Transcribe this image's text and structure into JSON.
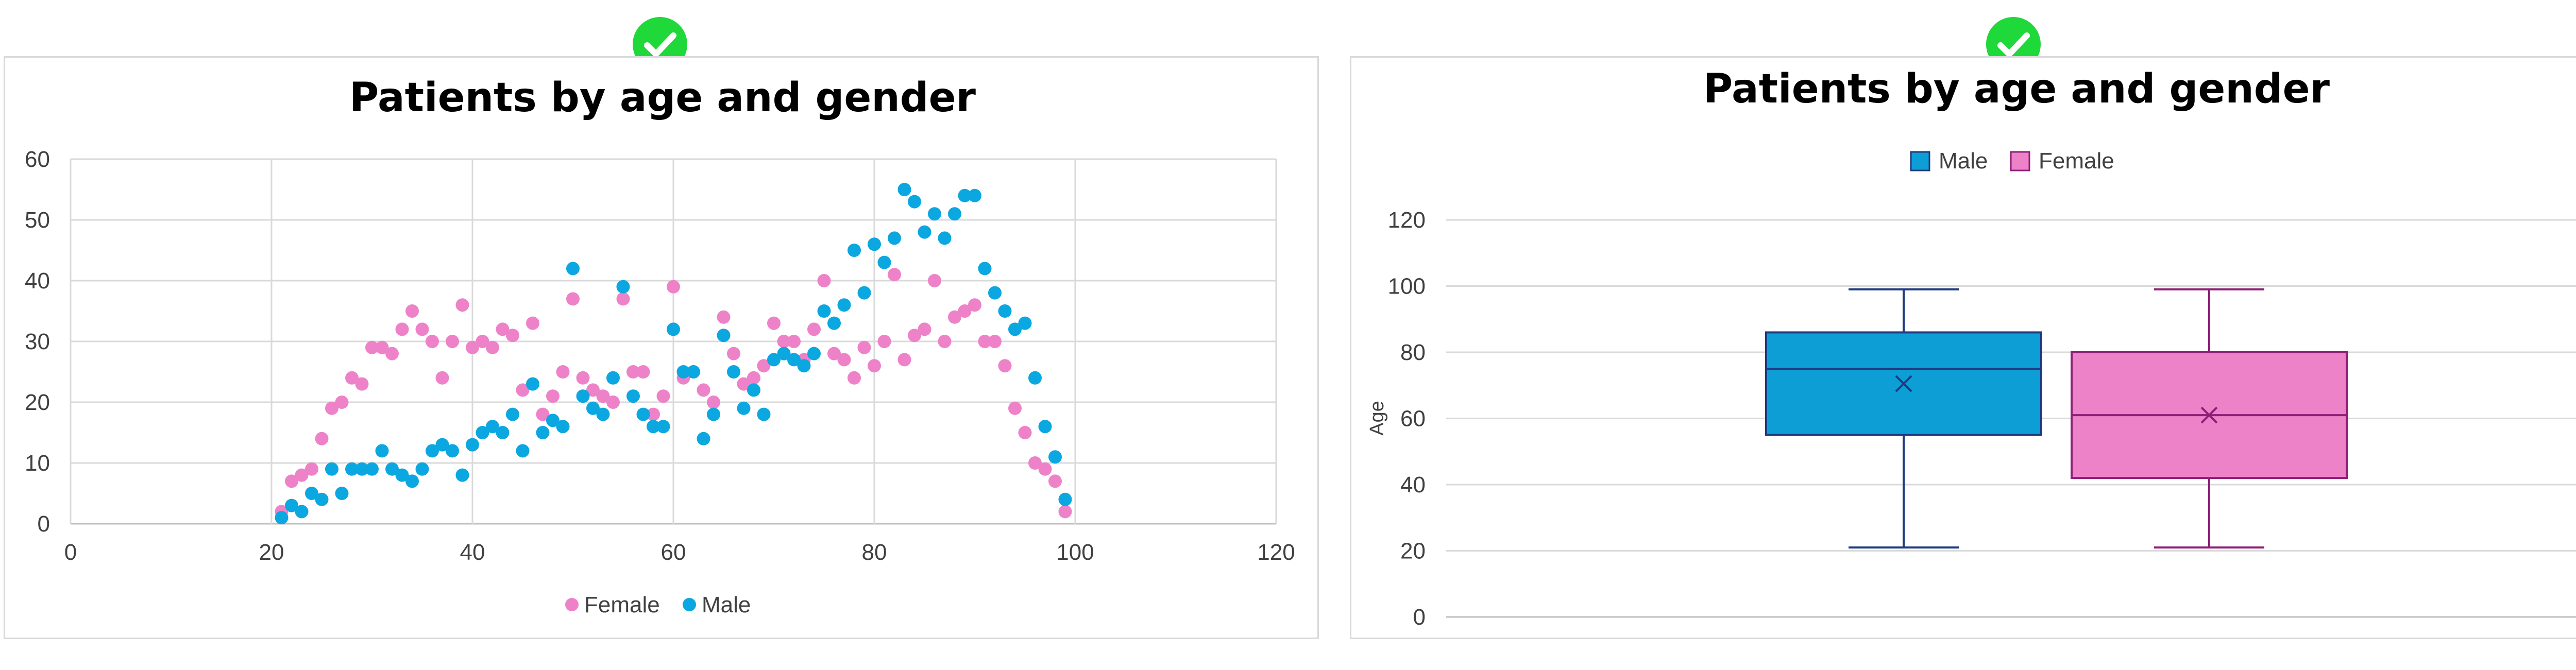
{
  "colors": {
    "title": "#9c0f74",
    "female": "#ee82c9",
    "male": "#0ba7e0",
    "male_box": "#0e9ed6",
    "male_box_edge": "#1f3a80",
    "female_box_edge": "#8e1f77",
    "grid": "#d9d9d9",
    "check": "#1fd83a"
  },
  "icons": {
    "left_badge": "check-circle-icon",
    "right_badge": "check-circle-icon"
  },
  "chart_data": [
    {
      "type": "scatter",
      "title": "Patients by age and gender",
      "xlabel": "",
      "ylabel": "",
      "xlim": [
        0,
        120
      ],
      "ylim": [
        0,
        60
      ],
      "xticks": [
        "0",
        "20",
        "40",
        "60",
        "80",
        "100",
        "120"
      ],
      "yticks": [
        "0",
        "10",
        "20",
        "30",
        "40",
        "50",
        "60"
      ],
      "grid": true,
      "legend_position": "bottom",
      "series": [
        {
          "name": "Female",
          "color": "#ee82c9",
          "points": [
            [
              21,
              2
            ],
            [
              22,
              7
            ],
            [
              23,
              8
            ],
            [
              24,
              9
            ],
            [
              25,
              14
            ],
            [
              26,
              19
            ],
            [
              27,
              20
            ],
            [
              28,
              24
            ],
            [
              29,
              23
            ],
            [
              30,
              29
            ],
            [
              31,
              29
            ],
            [
              32,
              28
            ],
            [
              33,
              32
            ],
            [
              34,
              35
            ],
            [
              35,
              32
            ],
            [
              36,
              30
            ],
            [
              37,
              24
            ],
            [
              38,
              30
            ],
            [
              39,
              36
            ],
            [
              40,
              29
            ],
            [
              41,
              30
            ],
            [
              42,
              29
            ],
            [
              43,
              32
            ],
            [
              44,
              31
            ],
            [
              45,
              22
            ],
            [
              46,
              33
            ],
            [
              47,
              18
            ],
            [
              48,
              21
            ],
            [
              49,
              25
            ],
            [
              50,
              37
            ],
            [
              51,
              24
            ],
            [
              52,
              22
            ],
            [
              53,
              21
            ],
            [
              54,
              20
            ],
            [
              55,
              37
            ],
            [
              56,
              25
            ],
            [
              57,
              25
            ],
            [
              58,
              18
            ],
            [
              59,
              21
            ],
            [
              60,
              39
            ],
            [
              61,
              24
            ],
            [
              62,
              25
            ],
            [
              63,
              22
            ],
            [
              64,
              20
            ],
            [
              65,
              34
            ],
            [
              66,
              28
            ],
            [
              67,
              23
            ],
            [
              68,
              24
            ],
            [
              69,
              26
            ],
            [
              70,
              33
            ],
            [
              71,
              30
            ],
            [
              72,
              30
            ],
            [
              73,
              27
            ],
            [
              74,
              32
            ],
            [
              75,
              40
            ],
            [
              76,
              28
            ],
            [
              77,
              27
            ],
            [
              78,
              24
            ],
            [
              79,
              29
            ],
            [
              80,
              26
            ],
            [
              81,
              30
            ],
            [
              82,
              41
            ],
            [
              83,
              27
            ],
            [
              84,
              31
            ],
            [
              85,
              32
            ],
            [
              86,
              40
            ],
            [
              87,
              30
            ],
            [
              88,
              34
            ],
            [
              89,
              35
            ],
            [
              90,
              36
            ],
            [
              91,
              30
            ],
            [
              92,
              30
            ],
            [
              93,
              26
            ],
            [
              94,
              19
            ],
            [
              95,
              15
            ],
            [
              96,
              10
            ],
            [
              97,
              9
            ],
            [
              98,
              7
            ],
            [
              99,
              2
            ]
          ]
        },
        {
          "name": "Male",
          "color": "#0ba7e0",
          "points": [
            [
              21,
              1
            ],
            [
              22,
              3
            ],
            [
              23,
              2
            ],
            [
              24,
              5
            ],
            [
              25,
              4
            ],
            [
              26,
              9
            ],
            [
              27,
              5
            ],
            [
              28,
              9
            ],
            [
              29,
              9
            ],
            [
              30,
              9
            ],
            [
              31,
              12
            ],
            [
              32,
              9
            ],
            [
              33,
              8
            ],
            [
              34,
              7
            ],
            [
              35,
              9
            ],
            [
              36,
              12
            ],
            [
              37,
              13
            ],
            [
              38,
              12
            ],
            [
              39,
              8
            ],
            [
              40,
              13
            ],
            [
              41,
              15
            ],
            [
              42,
              16
            ],
            [
              43,
              15
            ],
            [
              44,
              18
            ],
            [
              45,
              12
            ],
            [
              46,
              23
            ],
            [
              47,
              15
            ],
            [
              48,
              17
            ],
            [
              49,
              16
            ],
            [
              50,
              42
            ],
            [
              51,
              21
            ],
            [
              52,
              19
            ],
            [
              53,
              18
            ],
            [
              54,
              24
            ],
            [
              55,
              39
            ],
            [
              56,
              21
            ],
            [
              57,
              18
            ],
            [
              58,
              16
            ],
            [
              59,
              16
            ],
            [
              60,
              32
            ],
            [
              61,
              25
            ],
            [
              62,
              25
            ],
            [
              63,
              14
            ],
            [
              64,
              18
            ],
            [
              65,
              31
            ],
            [
              66,
              25
            ],
            [
              67,
              19
            ],
            [
              68,
              22
            ],
            [
              69,
              18
            ],
            [
              70,
              27
            ],
            [
              71,
              28
            ],
            [
              72,
              27
            ],
            [
              73,
              26
            ],
            [
              74,
              28
            ],
            [
              75,
              35
            ],
            [
              76,
              33
            ],
            [
              77,
              36
            ],
            [
              78,
              45
            ],
            [
              79,
              38
            ],
            [
              80,
              46
            ],
            [
              81,
              43
            ],
            [
              82,
              47
            ],
            [
              83,
              55
            ],
            [
              84,
              53
            ],
            [
              85,
              48
            ],
            [
              86,
              51
            ],
            [
              87,
              47
            ],
            [
              88,
              51
            ],
            [
              89,
              54
            ],
            [
              90,
              54
            ],
            [
              91,
              42
            ],
            [
              92,
              38
            ],
            [
              93,
              35
            ],
            [
              94,
              32
            ],
            [
              95,
              33
            ],
            [
              96,
              24
            ],
            [
              97,
              16
            ],
            [
              98,
              11
            ],
            [
              99,
              4
            ]
          ]
        }
      ]
    },
    {
      "type": "box",
      "title": "Patients by age and gender",
      "xlabel": "",
      "ylabel": "Age",
      "ylim": [
        0,
        120
      ],
      "yticks": [
        "0",
        "20",
        "40",
        "60",
        "80",
        "100",
        "120"
      ],
      "grid": true,
      "legend_position": "top",
      "series": [
        {
          "name": "Male",
          "color": "#0e9ed6",
          "edge": "#1f3a80",
          "min": 21,
          "q1": 55,
          "median": 75,
          "q3": 86,
          "max": 99,
          "mean": 70.5
        },
        {
          "name": "Female",
          "color": "#ee82c9",
          "edge": "#8e1f77",
          "min": 21,
          "q1": 42,
          "median": 61,
          "q3": 80,
          "max": 99,
          "mean": 61
        }
      ]
    }
  ]
}
